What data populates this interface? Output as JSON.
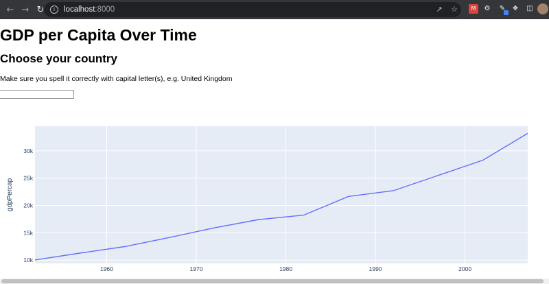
{
  "browser": {
    "url_host": "localhost",
    "url_port": ":8000",
    "icons": [
      "back-icon",
      "forward-icon",
      "reload-icon",
      "site-info-icon",
      "share-icon",
      "star-icon",
      "extension-icon",
      "settings-extension-icon",
      "pen-extension-icon",
      "puzzle-icon",
      "side-panel-icon",
      "profile-avatar"
    ]
  },
  "page": {
    "title": "GDP per Capita Over Time",
    "subtitle": "Choose your country",
    "hint": "Make sure you spell it correctly with capital letter(s), e.g. United Kingdom",
    "country_input_value": ""
  },
  "chart_data": {
    "type": "line",
    "title": "",
    "xlabel": "",
    "ylabel": "gdpPercap",
    "xlim": [
      1952,
      2007
    ],
    "ylim": [
      9400,
      34500
    ],
    "x_ticks": [
      1960,
      1970,
      1980,
      1990,
      2000
    ],
    "y_ticks": [
      10000,
      15000,
      20000,
      25000,
      30000
    ],
    "y_tick_labels": [
      "10k",
      "15k",
      "20k",
      "25k",
      "30k"
    ],
    "grid": true,
    "plot_bgcolor": "#e5ecf6",
    "line_color": "#636efa",
    "series": [
      {
        "x": [
          1952,
          1957,
          1962,
          1967,
          1972,
          1977,
          1982,
          1987,
          1992,
          1997,
          2002,
          2007
        ],
        "y": [
          10040,
          11280,
          12480,
          14140,
          15900,
          17430,
          18230,
          21660,
          22700,
          25500,
          28290,
          33200
        ]
      }
    ]
  }
}
